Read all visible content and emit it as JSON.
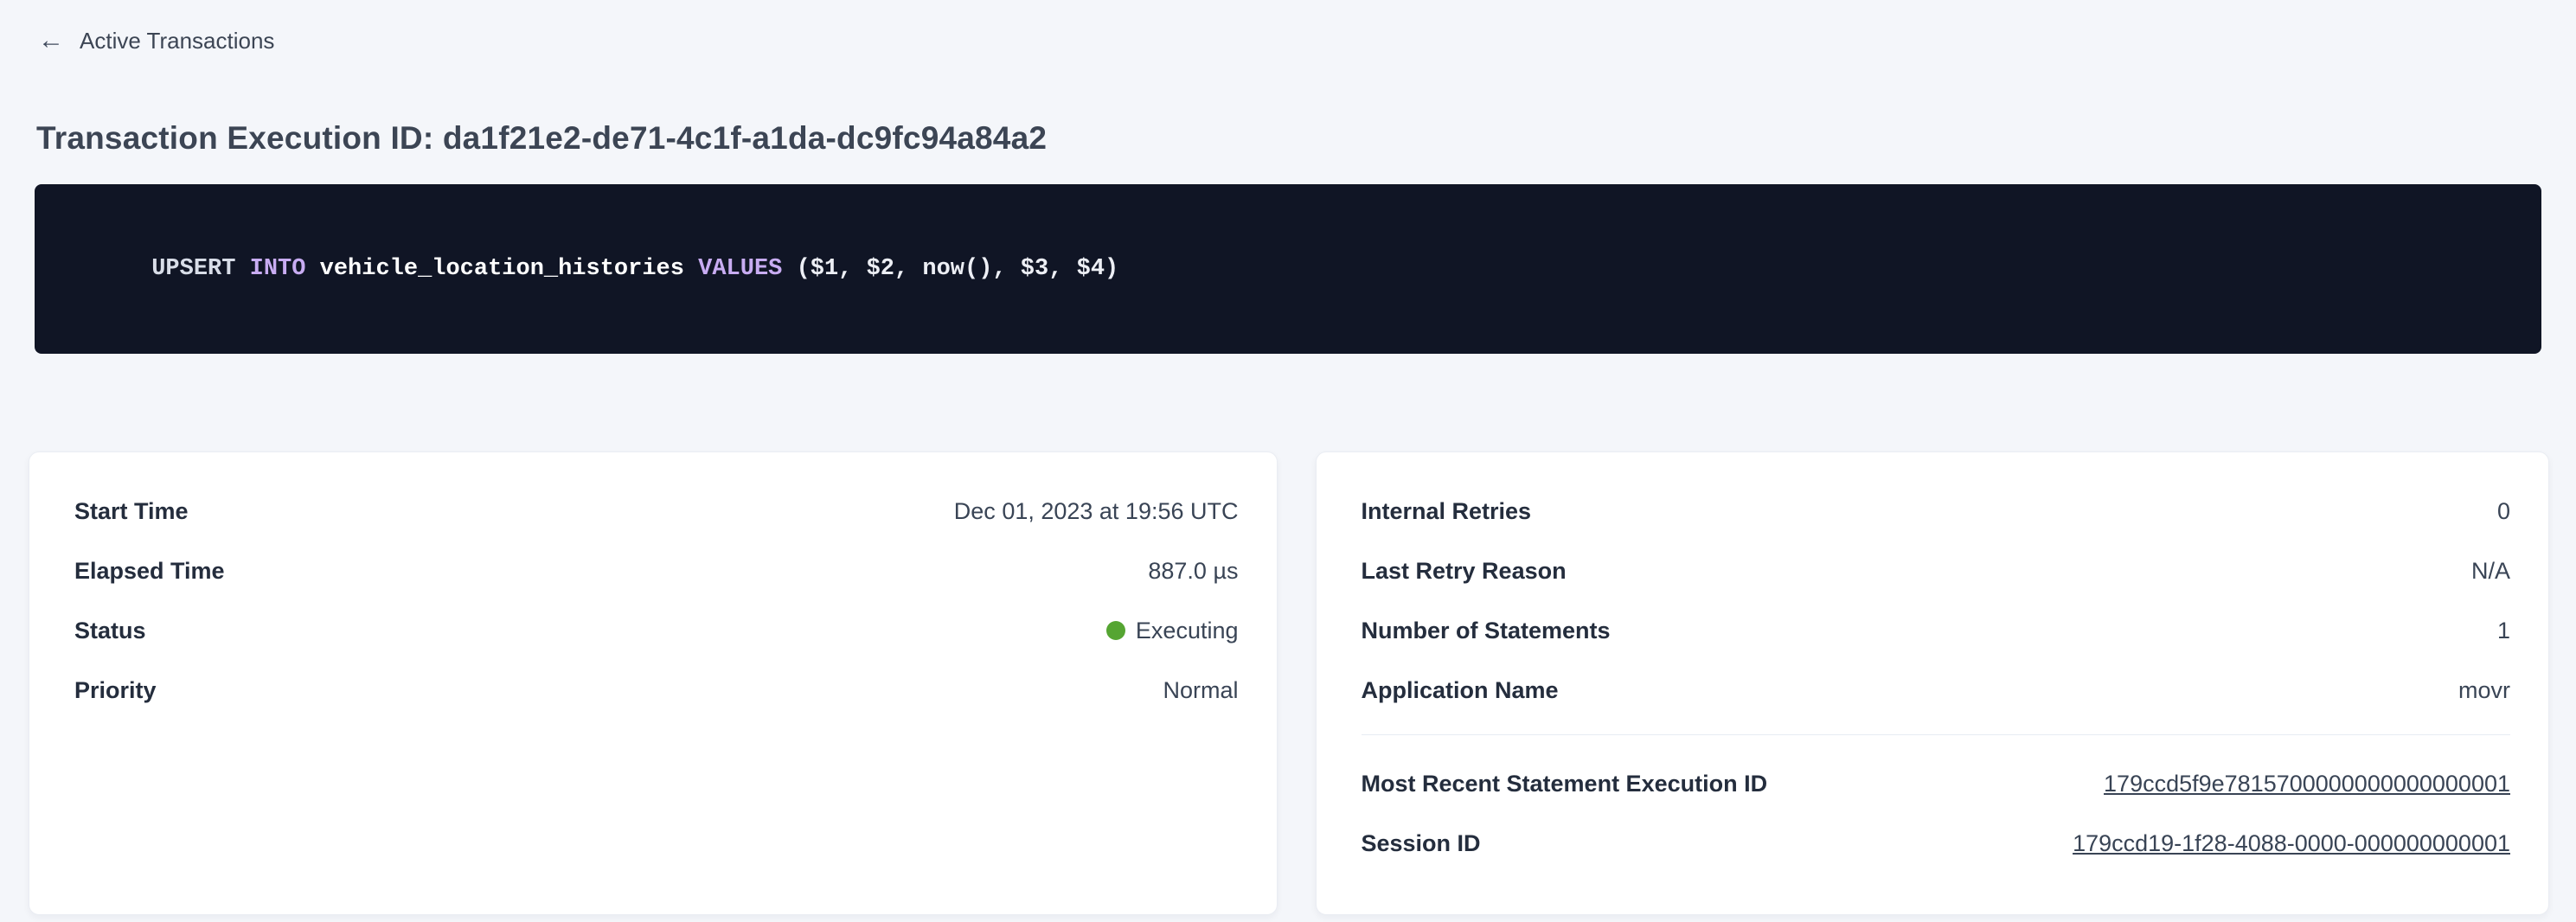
{
  "header": {
    "back_label": "Active Transactions",
    "title": "Transaction Execution ID: da1f21e2-de71-4c1f-a1da-dc9fc94a84a2"
  },
  "sql": {
    "tokens": [
      {
        "text": "UPSERT ",
        "type": "plain"
      },
      {
        "text": "INTO ",
        "type": "keyword"
      },
      {
        "text": "vehicle_location_histories ",
        "type": "identifier"
      },
      {
        "text": "VALUES ",
        "type": "keyword"
      },
      {
        "text": "($1, $2, now(), $3, $4)",
        "type": "params"
      }
    ],
    "full_statement": "UPSERT INTO vehicle_location_histories VALUES ($1, $2, now(), $3, $4)"
  },
  "cards": {
    "left": {
      "rows": [
        {
          "label": "Start Time",
          "value": "Dec 01, 2023 at 19:56 UTC"
        },
        {
          "label": "Elapsed Time",
          "value": "887.0 µs"
        },
        {
          "label": "Status",
          "value": "Executing"
        },
        {
          "label": "Priority",
          "value": "Normal"
        }
      ]
    },
    "right": {
      "rows": [
        {
          "label": "Internal Retries",
          "value": "0"
        },
        {
          "label": "Last Retry Reason",
          "value": "N/A"
        },
        {
          "label": "Number of Statements",
          "value": "1"
        },
        {
          "label": "Application Name",
          "value": "movr"
        }
      ],
      "link_rows": [
        {
          "label": "Most Recent Statement Execution ID",
          "value": "179ccd5f9e7815700000000000000001"
        },
        {
          "label": "Session ID",
          "value": "179ccd19-1f28-4088-0000-000000000001"
        }
      ]
    }
  },
  "colors": {
    "page_background": "#f4f6fa",
    "sql_box_background": "#101525",
    "sql_keyword": "#c8acf2",
    "status_executing_dot": "#55a532",
    "link": "#2b5cf2",
    "label_text": "#242d3d",
    "title_text": "#3c4554"
  }
}
